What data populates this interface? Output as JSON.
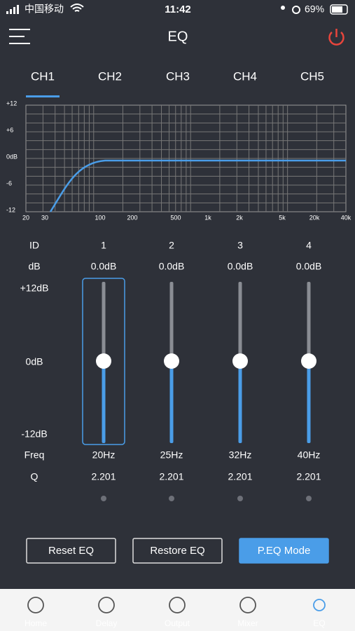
{
  "status": {
    "carrier": "中国移动",
    "time": "11:42",
    "battery": "69%"
  },
  "header": {
    "title": "EQ"
  },
  "tabs": [
    "CH1",
    "CH2",
    "CH3",
    "CH4",
    "CH5"
  ],
  "graph": {
    "y_labels": [
      "+12",
      "+6",
      "0dB",
      "-6",
      "-12"
    ],
    "x_labels": [
      "20",
      "30",
      "100",
      "200",
      "500",
      "1k",
      "2k",
      "5k",
      "20k",
      "40k"
    ]
  },
  "bands": {
    "row_labels": {
      "id": "ID",
      "gain": "dB",
      "max": "+12dB",
      "mid": "0dB",
      "min": "-12dB",
      "freq": "Freq",
      "q": "Q"
    },
    "items": [
      {
        "id": "1",
        "gain": "0.0dB",
        "freq": "20Hz",
        "q": "2.201"
      },
      {
        "id": "2",
        "gain": "0.0dB",
        "freq": "25Hz",
        "q": "2.201"
      },
      {
        "id": "3",
        "gain": "0.0dB",
        "freq": "32Hz",
        "q": "2.201"
      },
      {
        "id": "4",
        "gain": "0.0dB",
        "freq": "40Hz",
        "q": "2.201"
      }
    ]
  },
  "buttons": [
    "Reset EQ",
    "Restore EQ",
    "P.EQ Mode"
  ],
  "nav": [
    "Home",
    "Delay",
    "Output",
    "Mixer",
    "EQ"
  ]
}
